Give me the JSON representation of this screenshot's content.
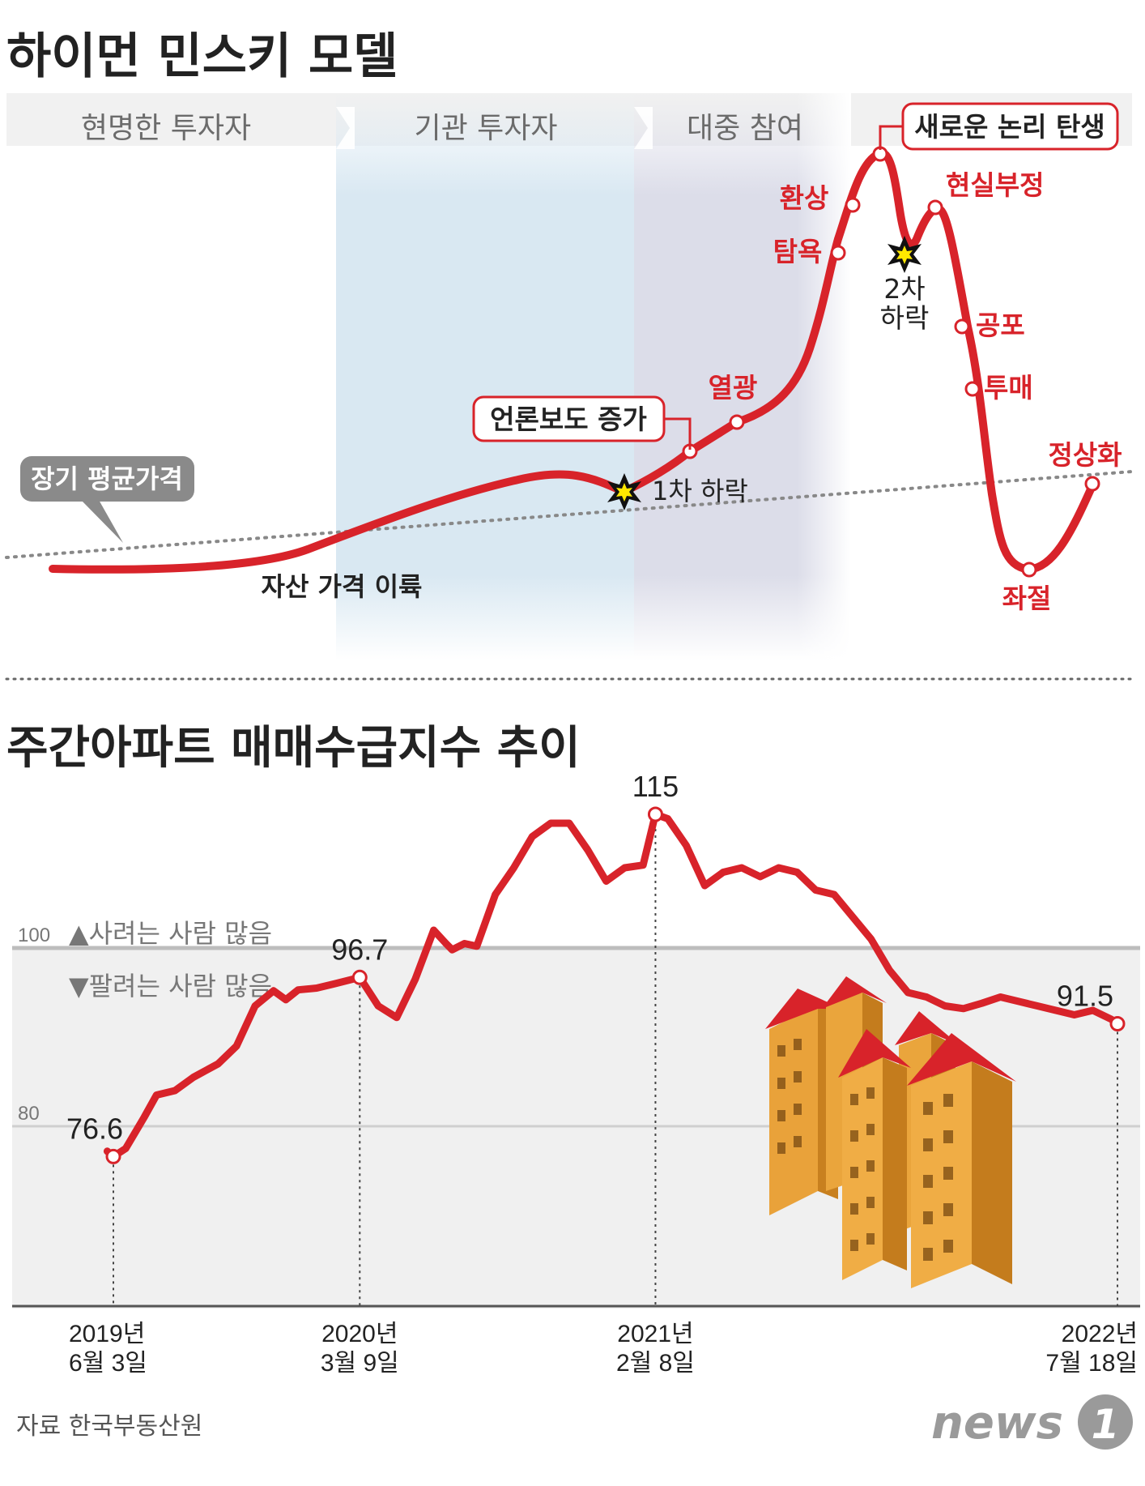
{
  "chart_data": [
    {
      "type": "line",
      "title": "하이먼 민스키 모델",
      "phases": [
        "현명한 투자자",
        "기관 투자자",
        "대중 참여"
      ],
      "reference_line_label": "장기 평균가격",
      "stages": [
        {
          "label": "자산 가격 이륙",
          "kind": "plain"
        },
        {
          "label": "1차 하락",
          "kind": "star"
        },
        {
          "label": "언론보도 증가",
          "kind": "boxed"
        },
        {
          "label": "열광",
          "kind": "point"
        },
        {
          "label": "탐욕",
          "kind": "point"
        },
        {
          "label": "환상",
          "kind": "point"
        },
        {
          "label": "새로운 논리 탄생",
          "kind": "boxed"
        },
        {
          "label": "2차 하락",
          "kind": "star"
        },
        {
          "label": "현실부정",
          "kind": "point"
        },
        {
          "label": "공포",
          "kind": "point"
        },
        {
          "label": "투매",
          "kind": "point"
        },
        {
          "label": "좌절",
          "kind": "point"
        },
        {
          "label": "정상화",
          "kind": "point"
        }
      ]
    },
    {
      "type": "line",
      "title": "주간아파트 매매수급지수 추이",
      "y_ticks": [
        "100",
        "80"
      ],
      "ylim": [
        65,
        120
      ],
      "above_note": "▲사려는 사람 많음",
      "below_note": "▼팔려는 사람 많음",
      "x_labels": [
        {
          "line1": "2019년",
          "line2": "6월 3일"
        },
        {
          "line1": "2020년",
          "line2": "3월 9일"
        },
        {
          "line1": "2021년",
          "line2": "2월 8일"
        },
        {
          "line1": "2022년",
          "line2": "7월 18일"
        }
      ],
      "highlights": [
        {
          "date": "2019-06-03",
          "value": 76.6,
          "label": "76.6"
        },
        {
          "date": "2020-03-09",
          "value": 96.7,
          "label": "96.7"
        },
        {
          "date": "2021-02-08",
          "value": 115,
          "label": "115"
        },
        {
          "date": "2022-07-18",
          "value": 91.5,
          "label": "91.5"
        }
      ],
      "series": [
        {
          "x": [
            "2019-05-27",
            "2019-06-03",
            "2019-06-17",
            "2019-07-08",
            "2019-07-22",
            "2019-08-12",
            "2019-09-02",
            "2019-09-30",
            "2019-10-21",
            "2019-11-11",
            "2019-12-02",
            "2019-12-16",
            "2019-12-30",
            "2020-01-20",
            "2020-02-10",
            "2020-03-09",
            "2020-03-30",
            "2020-04-20",
            "2020-05-11",
            "2020-06-01",
            "2020-06-15",
            "2020-06-22",
            "2020-07-06",
            "2020-07-20",
            "2020-08-10",
            "2020-08-31",
            "2020-09-21",
            "2020-10-12",
            "2020-11-02",
            "2020-11-23",
            "2020-12-14",
            "2021-01-04",
            "2021-01-25",
            "2021-02-08",
            "2021-02-22",
            "2021-03-15",
            "2021-04-05",
            "2021-04-26",
            "2021-05-17",
            "2021-06-07",
            "2021-06-28",
            "2021-07-19",
            "2021-08-09",
            "2021-08-30",
            "2021-09-20",
            "2021-10-11",
            "2021-11-01",
            "2021-11-22",
            "2021-12-13",
            "2022-01-03",
            "2022-01-24",
            "2022-02-14",
            "2022-03-07",
            "2022-03-28",
            "2022-04-18",
            "2022-05-09",
            "2022-05-30",
            "2022-06-20",
            "2022-07-11",
            "2022-07-18"
          ],
          "values": [
            77.2,
            76.6,
            77.5,
            81.0,
            83.5,
            84.0,
            85.5,
            87.0,
            89.0,
            93.5,
            95.2,
            94.2,
            95.3,
            95.5,
            96.0,
            96.7,
            93.5,
            92.2,
            96.5,
            102.0,
            100.5,
            99.8,
            100.5,
            100.2,
            106.0,
            109.0,
            112.5,
            114.0,
            114.0,
            111.0,
            107.5,
            109.0,
            109.3,
            115.0,
            114.5,
            111.5,
            107.0,
            108.5,
            109.0,
            108.0,
            109.0,
            108.5,
            106.5,
            106.0,
            103.5,
            101.0,
            97.5,
            95.0,
            94.5,
            93.5,
            93.2,
            93.8,
            94.5,
            94.0,
            93.5,
            93.0,
            92.5,
            93.0,
            92.0,
            91.5
          ]
        }
      ]
    }
  ],
  "source": "자료 한국부동산원",
  "logo": "news1",
  "colors": {
    "line": "#d8232a",
    "accent": "#d8232a",
    "phase_blue": "#d9e8f2",
    "phase_lavender": "#dcdde9",
    "band_gray": "#f0f0f0"
  }
}
